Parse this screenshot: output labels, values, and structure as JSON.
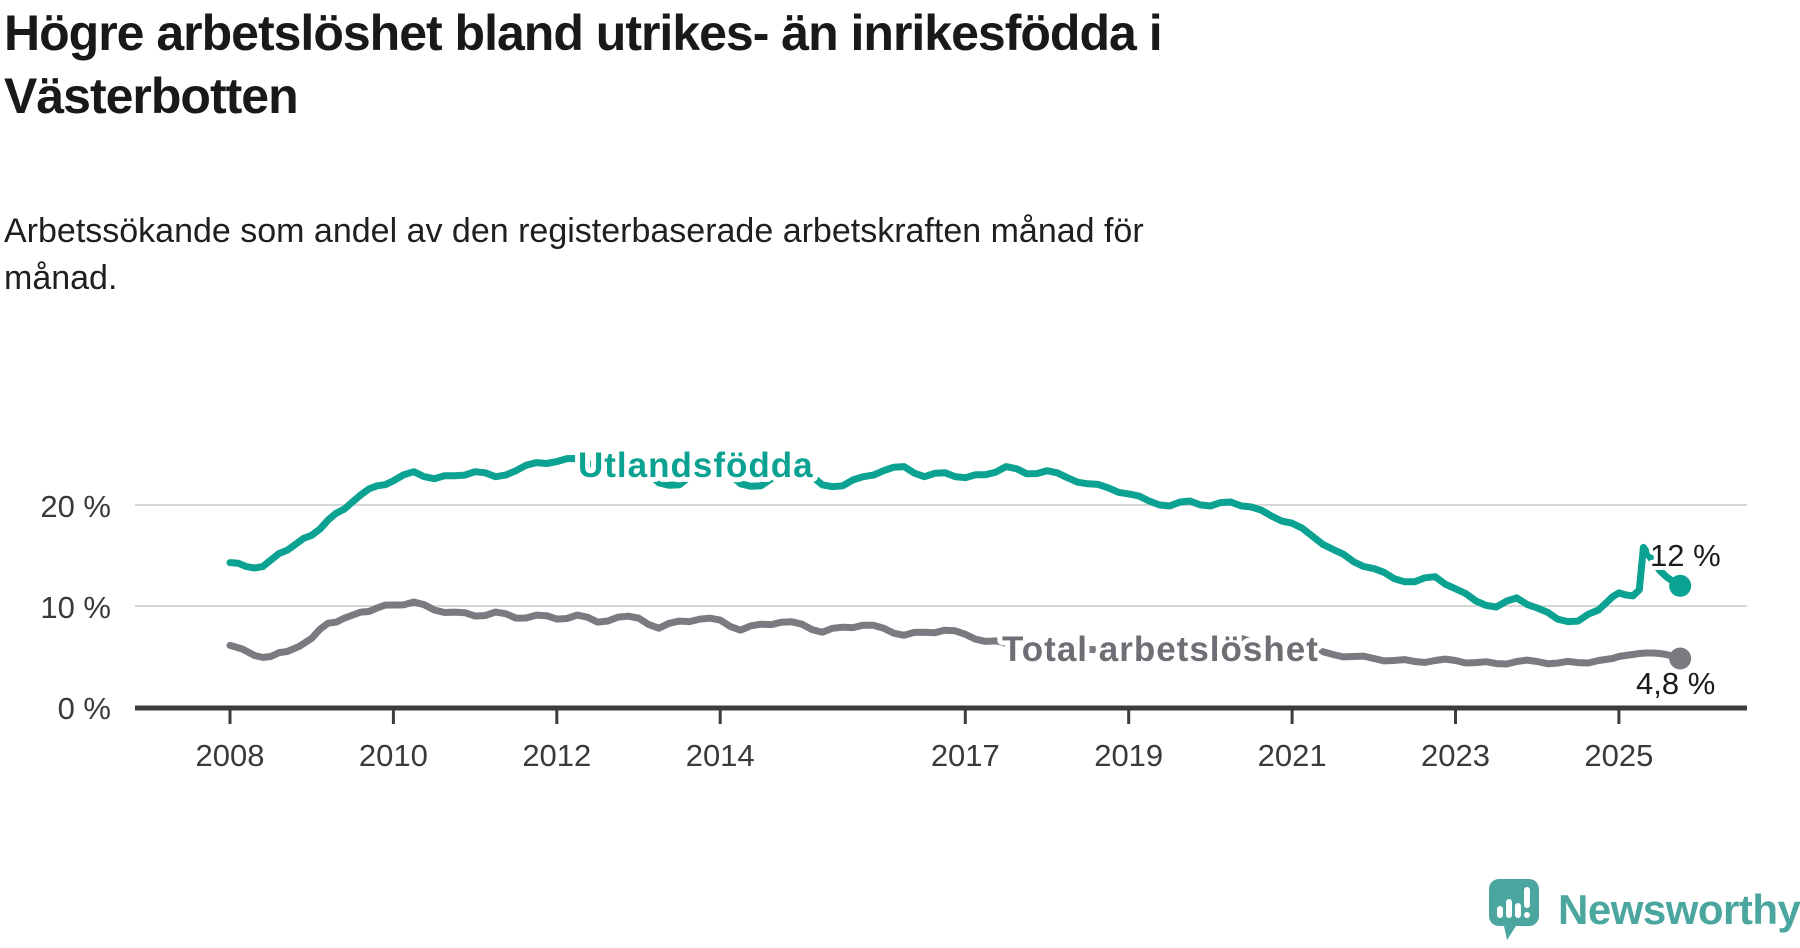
{
  "title": {
    "line1": "Högre arbetslöshet bland utrikes- än inrikesfödda i",
    "line2": "Västerbotten"
  },
  "subtitle": {
    "line1": "Arbetssökande som andel av den registerbaserade arbetskraften månad för",
    "line2": "månad."
  },
  "chart_data": {
    "type": "line",
    "title": "Högre arbetslöshet bland utrikes- än inrikesfödda i Västerbotten",
    "xlabel": "",
    "ylabel": "",
    "grid": "horizontal",
    "legend_position": "inline",
    "x_axis": {
      "unit": "year",
      "range": [
        2008,
        2025.83
      ],
      "ticks": [
        "2008",
        "2010",
        "2012",
        "2014",
        "2017",
        "2019",
        "2021",
        "2023",
        "2025"
      ],
      "tick_years": [
        2008,
        2010,
        2012,
        2014,
        2017,
        2019,
        2021,
        2023,
        2025
      ]
    },
    "y_axis": {
      "unit": "%",
      "range": [
        0,
        26
      ],
      "ticks": [
        {
          "value": 0,
          "label": "0 %",
          "grid": false
        },
        {
          "value": 10,
          "label": "10 %",
          "grid": true
        },
        {
          "value": 20,
          "label": "20 %",
          "grid": true
        }
      ]
    },
    "series": [
      {
        "name": "Utlandsfödda",
        "color": "#0ba292",
        "end_value": 12,
        "end_label": "12 %",
        "points": [
          [
            2008.0,
            14.3
          ],
          [
            2008.2,
            13.9
          ],
          [
            2008.4,
            13.9
          ],
          [
            2008.6,
            15.2
          ],
          [
            2008.8,
            16.1
          ],
          [
            2009.0,
            17.0
          ],
          [
            2009.2,
            18.5
          ],
          [
            2009.4,
            19.6
          ],
          [
            2009.6,
            21.0
          ],
          [
            2009.8,
            21.9
          ],
          [
            2010.0,
            22.4
          ],
          [
            2010.25,
            23.3
          ],
          [
            2010.5,
            22.6
          ],
          [
            2010.75,
            22.9
          ],
          [
            2011.0,
            23.3
          ],
          [
            2011.25,
            22.8
          ],
          [
            2011.5,
            23.4
          ],
          [
            2011.75,
            24.2
          ],
          [
            2012.0,
            24.3
          ],
          [
            2012.25,
            24.6
          ],
          [
            2012.5,
            23.9
          ],
          [
            2012.75,
            24.4
          ],
          [
            2013.0,
            23.8
          ],
          [
            2013.25,
            22.2
          ],
          [
            2013.5,
            22.0
          ],
          [
            2013.75,
            23.3
          ],
          [
            2014.0,
            23.6
          ],
          [
            2014.25,
            22.1
          ],
          [
            2014.5,
            21.9
          ],
          [
            2014.75,
            23.0
          ],
          [
            2015.0,
            23.4
          ],
          [
            2015.25,
            22.0
          ],
          [
            2015.5,
            21.9
          ],
          [
            2015.75,
            22.8
          ],
          [
            2016.0,
            23.4
          ],
          [
            2016.25,
            23.8
          ],
          [
            2016.5,
            22.8
          ],
          [
            2016.75,
            23.2
          ],
          [
            2017.0,
            22.7
          ],
          [
            2017.25,
            23.0
          ],
          [
            2017.5,
            23.8
          ],
          [
            2017.75,
            23.1
          ],
          [
            2018.0,
            23.4
          ],
          [
            2018.25,
            22.7
          ],
          [
            2018.5,
            22.1
          ],
          [
            2018.75,
            21.7
          ],
          [
            2019.0,
            21.1
          ],
          [
            2019.25,
            20.4
          ],
          [
            2019.5,
            19.9
          ],
          [
            2019.75,
            20.4
          ],
          [
            2020.0,
            19.9
          ],
          [
            2020.25,
            20.3
          ],
          [
            2020.5,
            19.8
          ],
          [
            2020.75,
            18.9
          ],
          [
            2021.0,
            18.2
          ],
          [
            2021.25,
            16.9
          ],
          [
            2021.5,
            15.6
          ],
          [
            2021.75,
            14.4
          ],
          [
            2022.0,
            13.7
          ],
          [
            2022.25,
            12.7
          ],
          [
            2022.5,
            12.4
          ],
          [
            2022.75,
            12.9
          ],
          [
            2023.0,
            11.7
          ],
          [
            2023.25,
            10.5
          ],
          [
            2023.5,
            9.9
          ],
          [
            2023.75,
            10.8
          ],
          [
            2024.0,
            9.8
          ],
          [
            2024.25,
            8.7
          ],
          [
            2024.5,
            8.5
          ],
          [
            2024.75,
            9.6
          ],
          [
            2024.92,
            10.9
          ],
          [
            2025.0,
            11.3
          ],
          [
            2025.08,
            11.1
          ],
          [
            2025.17,
            11.0
          ],
          [
            2025.25,
            11.6
          ],
          [
            2025.3,
            15.8
          ],
          [
            2025.42,
            14.4
          ],
          [
            2025.5,
            13.5
          ],
          [
            2025.58,
            12.9
          ],
          [
            2025.67,
            12.4
          ],
          [
            2025.75,
            12.0
          ]
        ]
      },
      {
        "name": "Total arbetslöshet",
        "color": "#7b7a80",
        "end_value": 4.8,
        "end_label": "4,8 %",
        "points": [
          [
            2008.0,
            6.1
          ],
          [
            2008.3,
            5.1
          ],
          [
            2008.5,
            5.0
          ],
          [
            2008.7,
            5.5
          ],
          [
            2009.0,
            6.8
          ],
          [
            2009.2,
            8.3
          ],
          [
            2009.4,
            8.8
          ],
          [
            2009.6,
            9.4
          ],
          [
            2009.8,
            9.8
          ],
          [
            2010.0,
            10.1
          ],
          [
            2010.25,
            10.4
          ],
          [
            2010.5,
            9.6
          ],
          [
            2010.75,
            9.4
          ],
          [
            2011.0,
            9.0
          ],
          [
            2011.25,
            9.4
          ],
          [
            2011.5,
            8.8
          ],
          [
            2011.75,
            9.1
          ],
          [
            2012.0,
            8.7
          ],
          [
            2012.25,
            9.1
          ],
          [
            2012.5,
            8.4
          ],
          [
            2012.75,
            8.9
          ],
          [
            2013.0,
            8.8
          ],
          [
            2013.25,
            7.8
          ],
          [
            2013.5,
            8.5
          ],
          [
            2013.75,
            8.7
          ],
          [
            2014.0,
            8.6
          ],
          [
            2014.25,
            7.6
          ],
          [
            2014.5,
            8.2
          ],
          [
            2014.75,
            8.4
          ],
          [
            2015.0,
            8.2
          ],
          [
            2015.25,
            7.4
          ],
          [
            2015.5,
            7.9
          ],
          [
            2015.75,
            8.1
          ],
          [
            2016.0,
            7.8
          ],
          [
            2016.25,
            7.1
          ],
          [
            2016.5,
            7.4
          ],
          [
            2016.75,
            7.6
          ],
          [
            2017.0,
            7.2
          ],
          [
            2017.25,
            6.5
          ],
          [
            2017.5,
            6.3
          ],
          [
            2017.75,
            6.4
          ],
          [
            2018.0,
            6.2
          ],
          [
            2018.25,
            5.8
          ],
          [
            2018.5,
            5.7
          ],
          [
            2018.75,
            5.9
          ],
          [
            2019.0,
            5.8
          ],
          [
            2019.25,
            5.5
          ],
          [
            2019.5,
            5.6
          ],
          [
            2019.75,
            5.9
          ],
          [
            2020.0,
            6.2
          ],
          [
            2020.25,
            6.8
          ],
          [
            2020.5,
            6.5
          ],
          [
            2020.75,
            6.2
          ],
          [
            2021.0,
            5.9
          ],
          [
            2021.25,
            5.5
          ],
          [
            2021.5,
            5.2
          ],
          [
            2021.75,
            5.0
          ],
          [
            2022.0,
            4.8
          ],
          [
            2022.25,
            4.6
          ],
          [
            2022.5,
            4.5
          ],
          [
            2022.75,
            4.6
          ],
          [
            2023.0,
            4.6
          ],
          [
            2023.25,
            4.4
          ],
          [
            2023.5,
            4.3
          ],
          [
            2023.75,
            4.5
          ],
          [
            2024.0,
            4.5
          ],
          [
            2024.25,
            4.35
          ],
          [
            2024.5,
            4.4
          ],
          [
            2024.75,
            4.6
          ],
          [
            2024.92,
            4.8
          ],
          [
            2025.0,
            5.0
          ],
          [
            2025.08,
            5.1
          ],
          [
            2025.17,
            5.2
          ],
          [
            2025.25,
            5.3
          ],
          [
            2025.33,
            5.35
          ],
          [
            2025.42,
            5.35
          ],
          [
            2025.5,
            5.3
          ],
          [
            2025.58,
            5.2
          ],
          [
            2025.67,
            5.0
          ],
          [
            2025.75,
            4.8
          ]
        ]
      }
    ]
  },
  "annotations": {
    "utlandsfodda_label": "Utlandsfödda",
    "total_label": "Total arbetslöshet",
    "teal_end_label": "12 %",
    "gray_end_label": "4,8 %"
  },
  "logo": {
    "text": "Newsworthy",
    "color": "#4aa69f"
  },
  "colors": {
    "background": "#ffffff",
    "title_text": "#191919",
    "axis_text": "#3a3a3a",
    "axis_line": "#3c3c3c",
    "gridline": "#d7d7d7",
    "teal_series": "#0ba292",
    "gray_series": "#7b7a80"
  }
}
